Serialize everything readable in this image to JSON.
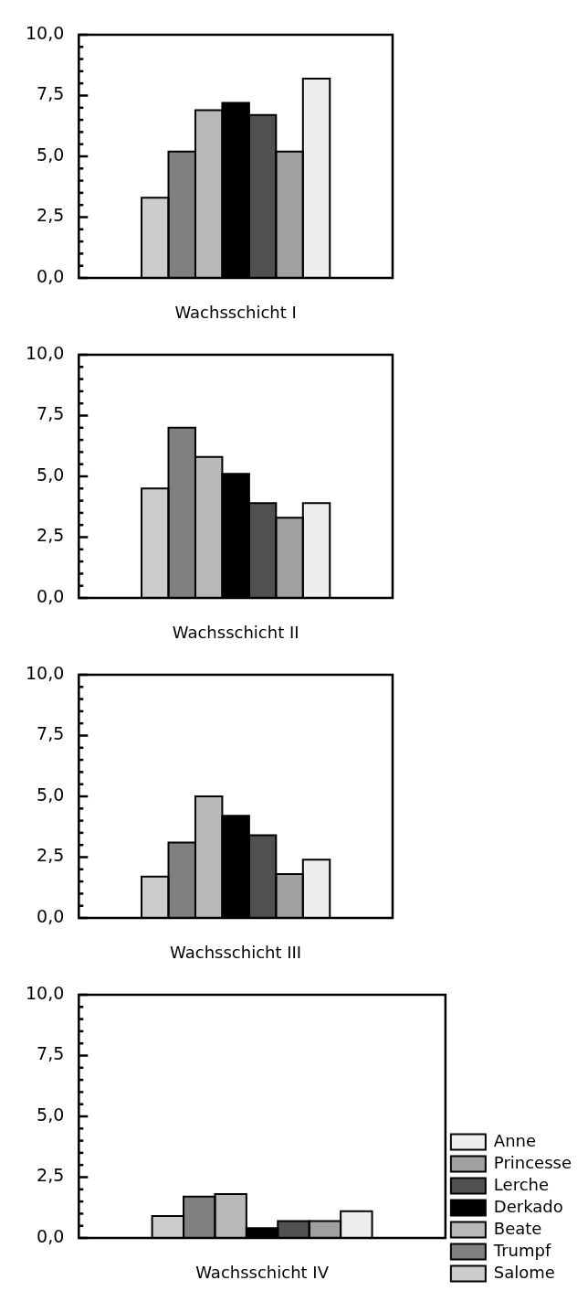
{
  "chart_data": [
    {
      "type": "bar",
      "xlabel": "Wachsschicht I",
      "categories": [
        null
      ],
      "ylim": [
        0,
        10
      ],
      "yticks": [
        {
          "value": 0,
          "label": "0,0"
        },
        {
          "value": 0.5,
          "label": null
        },
        {
          "value": 1,
          "label": null
        },
        {
          "value": 1.5,
          "label": null
        },
        {
          "value": 2,
          "label": null
        },
        {
          "value": 2.5,
          "label": "2,5"
        },
        {
          "value": 3,
          "label": null
        },
        {
          "value": 3.5,
          "label": null
        },
        {
          "value": 4,
          "label": null
        },
        {
          "value": 4.5,
          "label": null
        },
        {
          "value": 5,
          "label": "5,0"
        },
        {
          "value": 5.5,
          "label": null
        },
        {
          "value": 6,
          "label": null
        },
        {
          "value": 6.5,
          "label": null
        },
        {
          "value": 7,
          "label": null
        },
        {
          "value": 7.5,
          "label": "7,5"
        },
        {
          "value": 8,
          "label": null
        },
        {
          "value": 8.5,
          "label": null
        },
        {
          "value": 9,
          "label": null
        },
        {
          "value": 9.5,
          "label": null
        },
        {
          "value": 10,
          "label": "10,0"
        }
      ],
      "legend": false,
      "series": [
        {
          "color": "#cccccc",
          "values": [
            3.3
          ]
        },
        {
          "color": "#808080",
          "values": [
            5.2
          ]
        },
        {
          "color": "#b8b8b8",
          "values": [
            6.9
          ]
        },
        {
          "color": "#000000",
          "values": [
            7.2
          ]
        },
        {
          "color": "#505050",
          "values": [
            6.7
          ]
        },
        {
          "color": "#a0a0a0",
          "values": [
            5.2
          ]
        },
        {
          "color": "#eeeeee",
          "values": [
            8.2
          ]
        }
      ]
    },
    {
      "type": "bar",
      "xlabel": "Wachsschicht II",
      "categories": [
        null
      ],
      "ylim": [
        0,
        10
      ],
      "yticks": [
        {
          "value": 0,
          "label": "0,0"
        },
        {
          "value": 0.5,
          "label": null
        },
        {
          "value": 1,
          "label": null
        },
        {
          "value": 1.5,
          "label": null
        },
        {
          "value": 2,
          "label": null
        },
        {
          "value": 2.5,
          "label": "2,5"
        },
        {
          "value": 3,
          "label": null
        },
        {
          "value": 3.5,
          "label": null
        },
        {
          "value": 4,
          "label": null
        },
        {
          "value": 4.5,
          "label": null
        },
        {
          "value": 5,
          "label": "5,0"
        },
        {
          "value": 5.5,
          "label": null
        },
        {
          "value": 6,
          "label": null
        },
        {
          "value": 6.5,
          "label": null
        },
        {
          "value": 7,
          "label": null
        },
        {
          "value": 7.5,
          "label": "7,5"
        },
        {
          "value": 8,
          "label": null
        },
        {
          "value": 8.5,
          "label": null
        },
        {
          "value": 9,
          "label": null
        },
        {
          "value": 9.5,
          "label": null
        },
        {
          "value": 10,
          "label": "10,0"
        }
      ],
      "legend": false,
      "series": [
        {
          "color": "#cccccc",
          "values": [
            4.5
          ]
        },
        {
          "color": "#808080",
          "values": [
            7.0
          ]
        },
        {
          "color": "#b8b8b8",
          "values": [
            5.8
          ]
        },
        {
          "color": "#000000",
          "values": [
            5.1
          ]
        },
        {
          "color": "#505050",
          "values": [
            3.9
          ]
        },
        {
          "color": "#a0a0a0",
          "values": [
            3.3
          ]
        },
        {
          "color": "#eeeeee",
          "values": [
            3.9
          ]
        }
      ]
    },
    {
      "type": "bar",
      "xlabel": "Wachsschicht III",
      "categories": [
        null
      ],
      "ylim": [
        0,
        10
      ],
      "yticks": [
        {
          "value": 0,
          "label": "0,0"
        },
        {
          "value": 0.5,
          "label": null
        },
        {
          "value": 1,
          "label": null
        },
        {
          "value": 1.5,
          "label": null
        },
        {
          "value": 2,
          "label": null
        },
        {
          "value": 2.5,
          "label": "2,5"
        },
        {
          "value": 3,
          "label": null
        },
        {
          "value": 3.5,
          "label": null
        },
        {
          "value": 4,
          "label": null
        },
        {
          "value": 4.5,
          "label": null
        },
        {
          "value": 5,
          "label": "5,0"
        },
        {
          "value": 5.5,
          "label": null
        },
        {
          "value": 6,
          "label": null
        },
        {
          "value": 6.5,
          "label": null
        },
        {
          "value": 7,
          "label": null
        },
        {
          "value": 7.5,
          "label": "7,5"
        },
        {
          "value": 8,
          "label": null
        },
        {
          "value": 8.5,
          "label": null
        },
        {
          "value": 9,
          "label": null
        },
        {
          "value": 9.5,
          "label": null
        },
        {
          "value": 10,
          "label": "10,0"
        }
      ],
      "legend": false,
      "series": [
        {
          "color": "#cccccc",
          "values": [
            1.7
          ]
        },
        {
          "color": "#808080",
          "values": [
            3.1
          ]
        },
        {
          "color": "#b8b8b8",
          "values": [
            5.0
          ]
        },
        {
          "color": "#000000",
          "values": [
            4.2
          ]
        },
        {
          "color": "#505050",
          "values": [
            3.4
          ]
        },
        {
          "color": "#a0a0a0",
          "values": [
            1.8
          ]
        },
        {
          "color": "#eeeeee",
          "values": [
            2.4
          ]
        }
      ]
    },
    {
      "type": "bar",
      "xlabel": "Wachsschicht IV",
      "categories": [
        null
      ],
      "ylim": [
        0,
        10
      ],
      "yticks": [
        {
          "value": 0,
          "label": "0,0"
        },
        {
          "value": 0.5,
          "label": null
        },
        {
          "value": 1,
          "label": null
        },
        {
          "value": 1.5,
          "label": null
        },
        {
          "value": 2,
          "label": null
        },
        {
          "value": 2.5,
          "label": "2,5"
        },
        {
          "value": 3,
          "label": null
        },
        {
          "value": 3.5,
          "label": null
        },
        {
          "value": 4,
          "label": null
        },
        {
          "value": 4.5,
          "label": null
        },
        {
          "value": 5,
          "label": "5,0"
        },
        {
          "value": 5.5,
          "label": null
        },
        {
          "value": 6,
          "label": null
        },
        {
          "value": 6.5,
          "label": null
        },
        {
          "value": 7,
          "label": null
        },
        {
          "value": 7.5,
          "label": "7,5"
        },
        {
          "value": 8,
          "label": null
        },
        {
          "value": 8.5,
          "label": null
        },
        {
          "value": 9,
          "label": null
        },
        {
          "value": 9.5,
          "label": null
        },
        {
          "value": 10,
          "label": "10,0"
        }
      ],
      "legend": "right",
      "series": [
        {
          "name": "Salome",
          "color": "#cccccc",
          "values": [
            0.9
          ]
        },
        {
          "name": "Trumpf",
          "color": "#808080",
          "values": [
            1.7
          ]
        },
        {
          "name": "Beate",
          "color": "#b8b8b8",
          "values": [
            1.8
          ]
        },
        {
          "name": "Derkado",
          "color": "#000000",
          "values": [
            0.4
          ]
        },
        {
          "name": "Lerche",
          "color": "#505050",
          "values": [
            0.7
          ]
        },
        {
          "name": "Princesse",
          "color": "#a0a0a0",
          "values": [
            0.7
          ]
        },
        {
          "name": "Anne",
          "color": "#eeeeee",
          "values": [
            1.1
          ]
        }
      ]
    }
  ]
}
